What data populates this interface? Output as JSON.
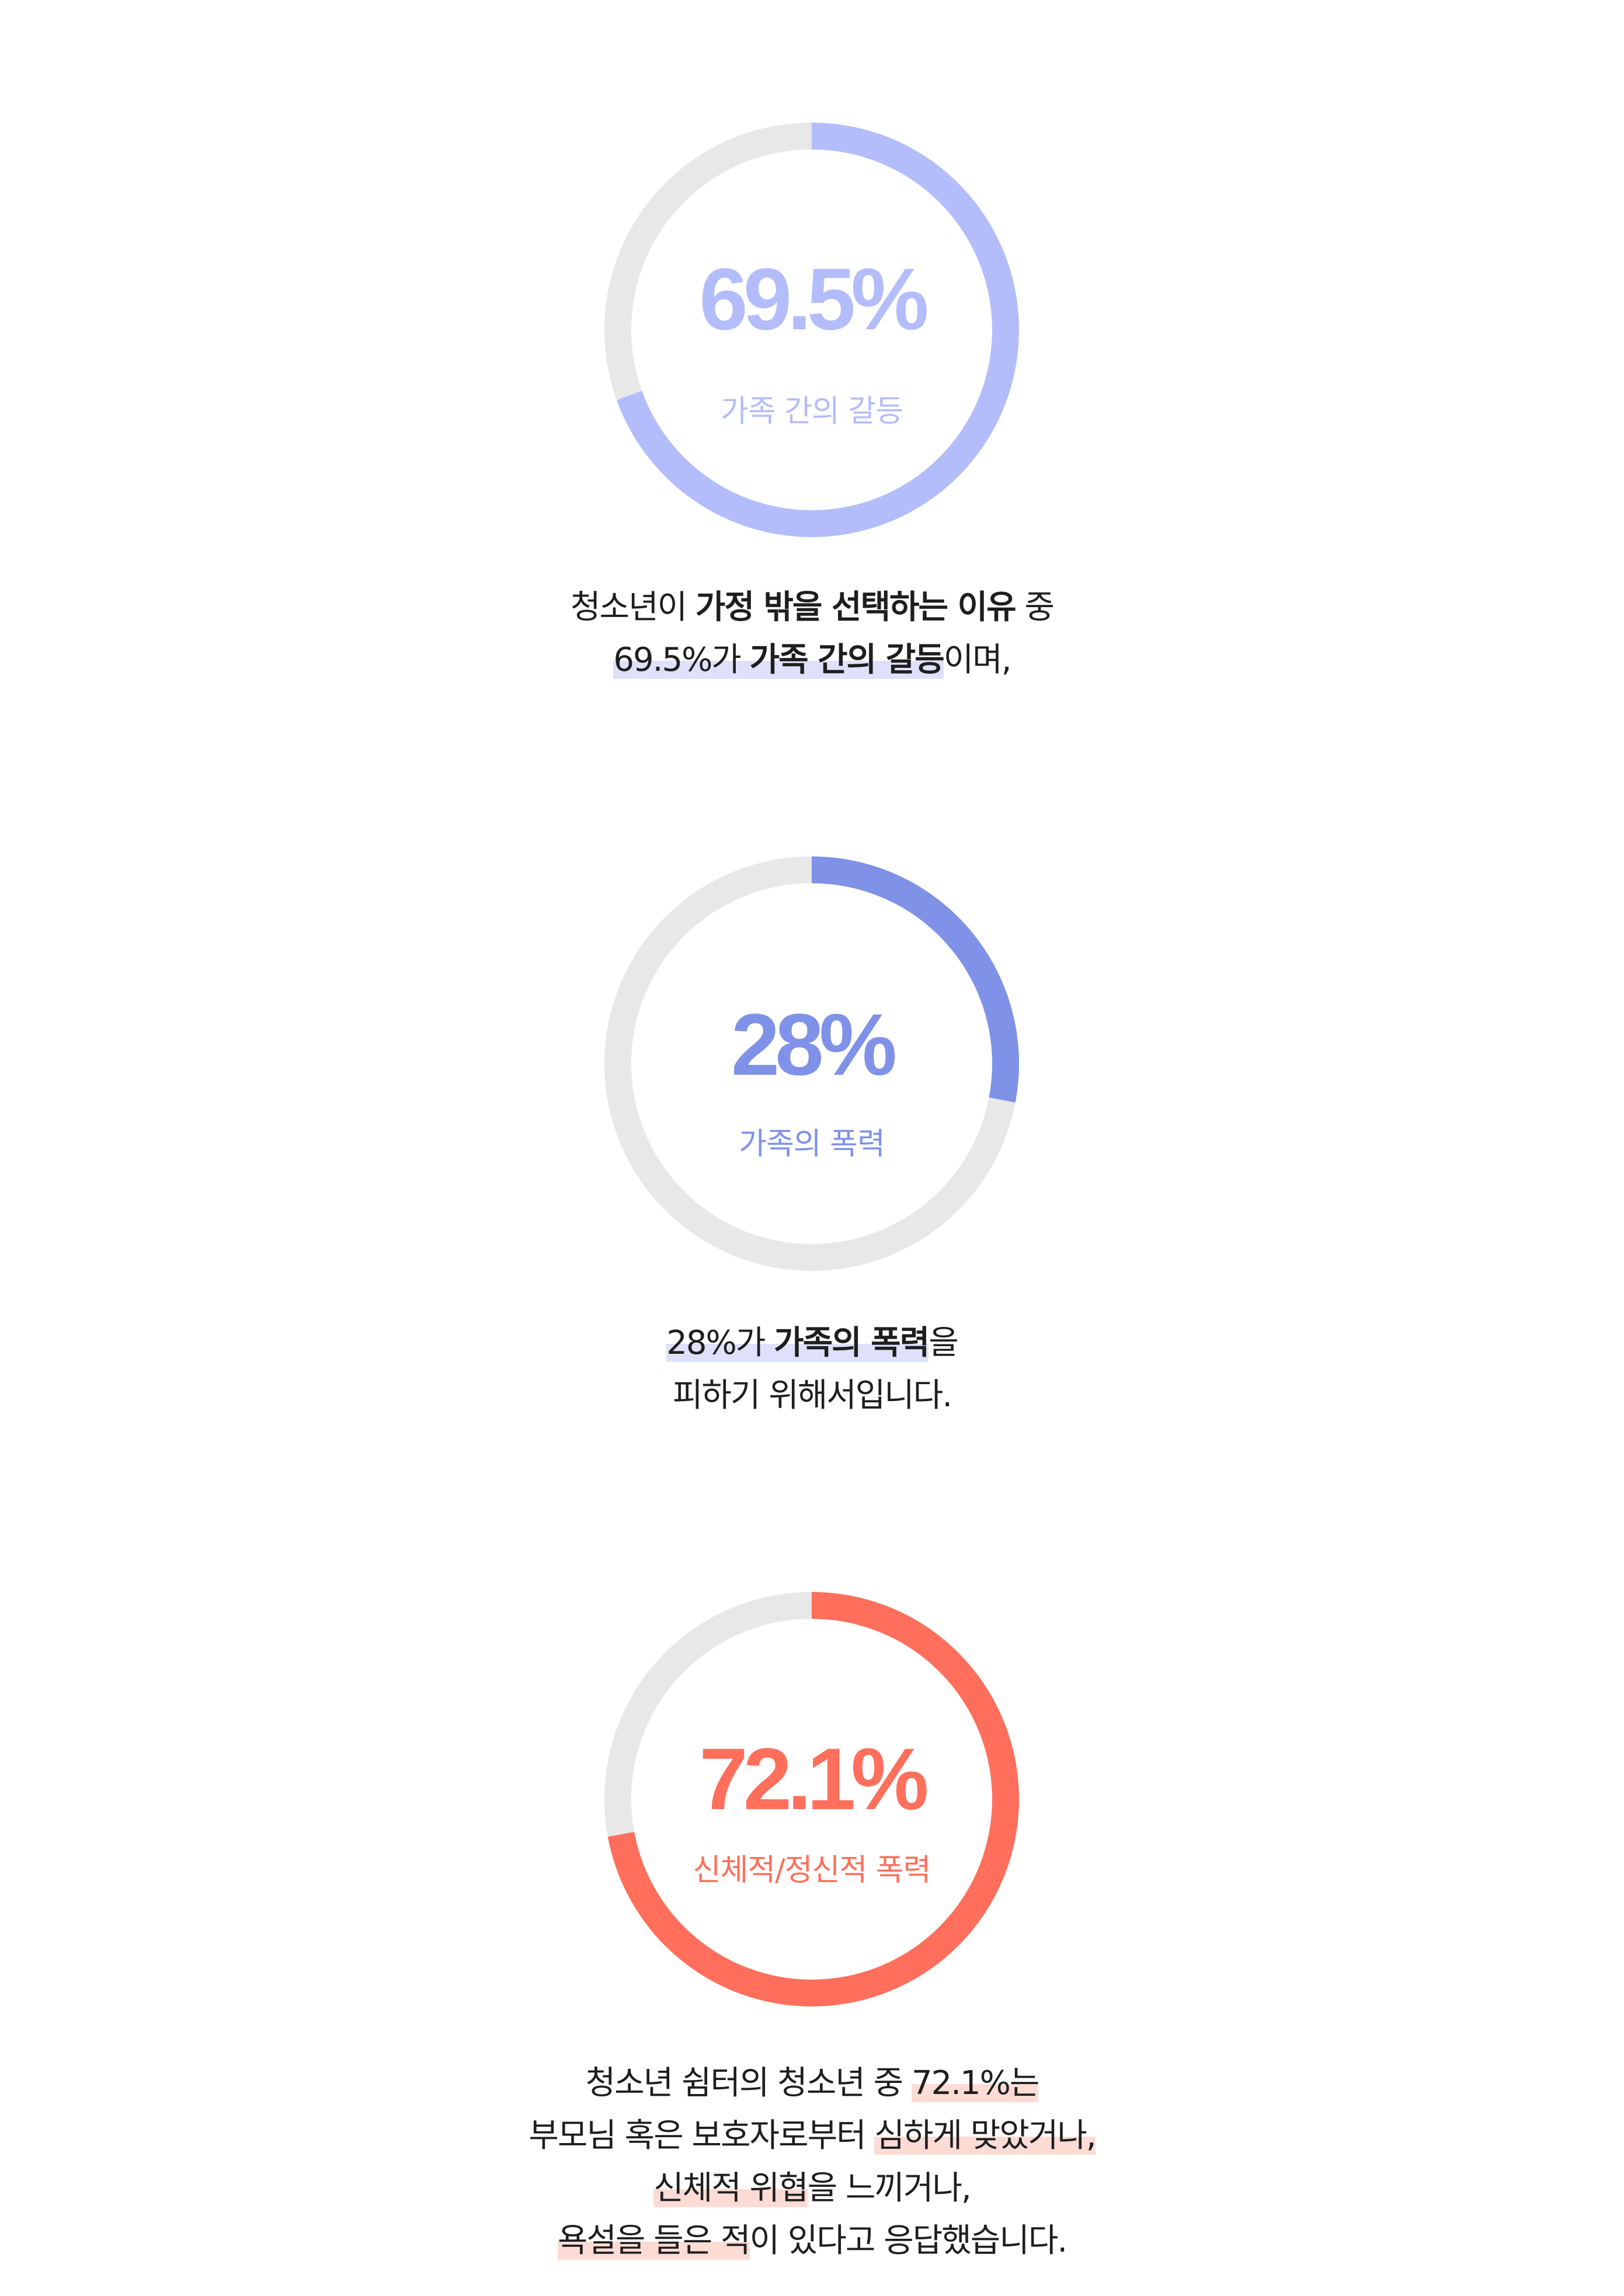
{
  "chart_data": [
    {
      "type": "pie",
      "value": 69.5,
      "unit": "%",
      "value_label": "69.5%",
      "category_label": "가족 간의 갈등"
    },
    {
      "type": "pie",
      "value": 28,
      "unit": "%",
      "value_label": "28%",
      "category_label": "가족의 폭력"
    },
    {
      "type": "pie",
      "value": 72.1,
      "unit": "%",
      "value_label": "72.1%",
      "category_label": "신체적/정신적 폭력"
    }
  ],
  "colors": {
    "track": "#e8e8e8",
    "chart1": "#b3bdfb",
    "chart2": "#7f92e8",
    "chart3": "#ff6f5c",
    "text": "#1e1e1e",
    "highlight_blue": "#dfe1fb",
    "highlight_red": "#fddbd5"
  },
  "captions": {
    "c1": {
      "l1_a": "청소년이 ",
      "l1_b": "가정 밖을 선택하는 이유",
      "l1_c": " 중",
      "l2_a": "69.5%가 ",
      "l2_b": "가족 간의 갈등",
      "l2_c": "이며,"
    },
    "c2": {
      "l1_a": "28%가 ",
      "l1_b": "가족의 폭력",
      "l1_c": "을",
      "l2": "피하기 위해서입니다."
    },
    "c3": {
      "l1_a": "청소년 쉼터의 청소년 중 ",
      "l1_b": "72.1%는",
      "l2_a": "부모님 혹은 보호자로부터 ",
      "l2_b": "심하게 맞았거나,",
      "l3_a": "신체적 위협",
      "l3_b": "을 느끼거나,",
      "l4_a": "욕설을 들은 적",
      "l4_b": "이 있다고 응답했습니다."
    }
  }
}
